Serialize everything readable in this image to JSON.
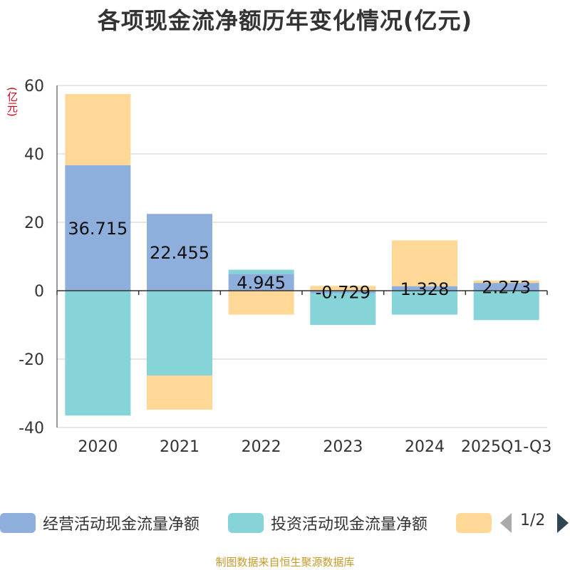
{
  "chart_data": {
    "type": "bar",
    "stacked": true,
    "title": "各项现金流净额历年变化情况(亿元)",
    "ylabel": "(亿元)",
    "ylim": [
      -40,
      60
    ],
    "yticks": [
      -40,
      -20,
      0,
      20,
      40,
      60
    ],
    "grid": true,
    "categories": [
      "2020",
      "2021",
      "2022",
      "2023",
      "2024",
      "2025Q1-Q3"
    ],
    "series": [
      {
        "name": "经营活动现金流量净额",
        "color": "#8eaedc",
        "values": [
          36.715,
          22.455,
          4.945,
          -0.729,
          1.328,
          2.273
        ],
        "labels": [
          "36.715",
          "22.455",
          "4.945",
          "-0.729",
          "1.328",
          "2.273"
        ]
      },
      {
        "name": "投资活动现金流量净额",
        "color": "#87d4d8",
        "values": [
          -36.5,
          -24.8,
          1.2,
          -9.3,
          -7.0,
          -8.6
        ]
      },
      {
        "name": "",
        "color": "#ffd898",
        "values": [
          20.8,
          -10.0,
          -7.0,
          1.4,
          13.4,
          0.7
        ]
      }
    ],
    "legend": {
      "position": "bottom",
      "page": "1/2"
    },
    "source": "制图数据来自恒生聚源数据库"
  }
}
